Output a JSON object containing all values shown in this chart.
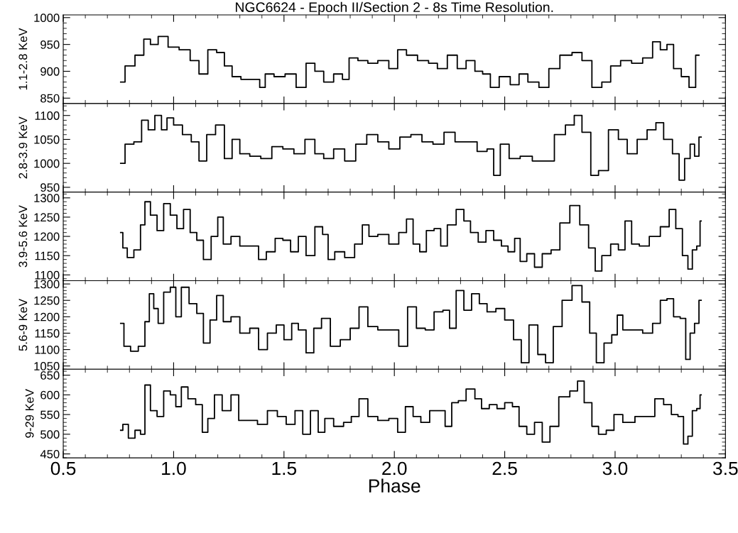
{
  "chart_data": [
    {
      "type": "step",
      "title": "NGC6624 - Epoch II/Section 2 - 8s Time Resolution.",
      "ylabel": "1.1-2.8 KeV",
      "xlim": [
        0.5,
        3.5
      ],
      "xticks": [
        0.5,
        1.0,
        1.5,
        2.0,
        2.5,
        3.0,
        3.5
      ],
      "ylim": [
        840,
        1005
      ],
      "yticks": [
        850,
        900,
        950,
        1000
      ],
      "tick_labels": "y",
      "grid": false,
      "legend": false,
      "series": [
        {
          "color": "#000000",
          "x": [
            0.76,
            0.8,
            0.85,
            0.88,
            0.91,
            0.95,
            1.0,
            1.05,
            1.1,
            1.13,
            1.18,
            1.21,
            1.25,
            1.28,
            1.33,
            1.38,
            1.4,
            1.43,
            1.48,
            1.53,
            1.58,
            1.62,
            1.66,
            1.7,
            1.75,
            1.78,
            1.81,
            1.86,
            1.9,
            1.95,
            2.0,
            2.03,
            2.08,
            2.13,
            2.18,
            2.21,
            2.27,
            2.3,
            2.35,
            2.38,
            2.42,
            2.45,
            2.5,
            2.55,
            2.58,
            2.63,
            2.68,
            2.72,
            2.78,
            2.83,
            2.87,
            2.92,
            2.96,
            3.0,
            3.05,
            3.1,
            3.15,
            3.19,
            3.22,
            3.25,
            3.28,
            3.32,
            3.35,
            3.38
          ],
          "values": [
            880,
            910,
            930,
            960,
            950,
            965,
            945,
            940,
            920,
            895,
            940,
            935,
            910,
            890,
            885,
            885,
            870,
            895,
            890,
            895,
            870,
            915,
            900,
            880,
            895,
            885,
            925,
            920,
            915,
            920,
            905,
            940,
            930,
            920,
            915,
            905,
            930,
            905,
            920,
            900,
            895,
            870,
            890,
            875,
            895,
            880,
            870,
            905,
            930,
            935,
            920,
            870,
            880,
            910,
            920,
            915,
            925,
            955,
            940,
            950,
            905,
            890,
            870,
            930
          ]
        }
      ]
    },
    {
      "type": "step",
      "ylabel": "2.8-3.9 KeV",
      "xlim": [
        0.5,
        3.5
      ],
      "xticks": [
        0.5,
        1.0,
        1.5,
        2.0,
        2.5,
        3.0,
        3.5
      ],
      "ylim": [
        940,
        1125
      ],
      "yticks": [
        950,
        1000,
        1050,
        1100
      ],
      "tick_labels": "y",
      "grid": false,
      "legend": false,
      "series": [
        {
          "color": "#000000",
          "x": [
            0.76,
            0.8,
            0.84,
            0.87,
            0.9,
            0.93,
            0.96,
            0.98,
            1.02,
            1.06,
            1.1,
            1.13,
            1.17,
            1.21,
            1.25,
            1.28,
            1.32,
            1.37,
            1.42,
            1.47,
            1.52,
            1.57,
            1.62,
            1.66,
            1.7,
            1.75,
            1.8,
            1.85,
            1.9,
            1.95,
            2.0,
            2.05,
            2.1,
            2.15,
            2.2,
            2.25,
            2.3,
            2.35,
            2.4,
            2.44,
            2.46,
            2.5,
            2.54,
            2.6,
            2.65,
            2.7,
            2.75,
            2.8,
            2.83,
            2.87,
            2.91,
            2.94,
            3.0,
            3.03,
            3.08,
            3.12,
            3.17,
            3.2,
            3.24,
            3.28,
            3.3,
            3.33,
            3.35,
            3.37,
            3.39
          ],
          "values": [
            1000,
            1040,
            1045,
            1090,
            1070,
            1100,
            1070,
            1095,
            1080,
            1060,
            1045,
            1005,
            1060,
            1080,
            1010,
            1050,
            1020,
            1015,
            1010,
            1035,
            1030,
            1020,
            1050,
            1020,
            1010,
            1030,
            1005,
            1040,
            1060,
            1045,
            1030,
            1055,
            1060,
            1045,
            1040,
            1065,
            1045,
            1045,
            1025,
            1030,
            975,
            1040,
            1010,
            1015,
            1005,
            1005,
            1060,
            1080,
            1100,
            1065,
            975,
            985,
            1070,
            1050,
            1020,
            1050,
            1070,
            1085,
            1050,
            1020,
            965,
            1010,
            1040,
            1015,
            1055
          ]
        }
      ]
    },
    {
      "type": "step",
      "ylabel": "3.9-5.6 KeV",
      "xlim": [
        0.5,
        3.5
      ],
      "xticks": [
        0.5,
        1.0,
        1.5,
        2.0,
        2.5,
        3.0,
        3.5
      ],
      "ylim": [
        1085,
        1315
      ],
      "yticks": [
        1100,
        1150,
        1200,
        1250,
        1300
      ],
      "tick_labels": "y",
      "grid": false,
      "legend": false,
      "series": [
        {
          "color": "#000000",
          "x": [
            0.76,
            0.78,
            0.8,
            0.84,
            0.86,
            0.88,
            0.91,
            0.94,
            0.97,
            1.0,
            1.03,
            1.06,
            1.09,
            1.12,
            1.15,
            1.19,
            1.21,
            1.24,
            1.28,
            1.32,
            1.37,
            1.4,
            1.44,
            1.48,
            1.51,
            1.55,
            1.58,
            1.62,
            1.66,
            1.69,
            1.71,
            1.75,
            1.8,
            1.84,
            1.87,
            1.9,
            1.95,
            2.0,
            2.04,
            2.07,
            2.1,
            2.13,
            2.16,
            2.2,
            2.22,
            2.26,
            2.3,
            2.33,
            2.36,
            2.4,
            2.43,
            2.47,
            2.5,
            2.53,
            2.56,
            2.58,
            2.62,
            2.65,
            2.69,
            2.73,
            2.77,
            2.82,
            2.86,
            2.9,
            2.92,
            2.96,
            3.0,
            3.03,
            3.06,
            3.09,
            3.13,
            3.18,
            3.23,
            3.26,
            3.29,
            3.32,
            3.34,
            3.36,
            3.38,
            3.39
          ],
          "values": [
            1210,
            1170,
            1145,
            1165,
            1230,
            1290,
            1255,
            1215,
            1285,
            1255,
            1220,
            1270,
            1210,
            1190,
            1140,
            1200,
            1250,
            1180,
            1200,
            1175,
            1175,
            1140,
            1160,
            1195,
            1190,
            1160,
            1200,
            1150,
            1225,
            1205,
            1140,
            1160,
            1145,
            1180,
            1230,
            1200,
            1205,
            1180,
            1210,
            1245,
            1180,
            1160,
            1215,
            1220,
            1175,
            1230,
            1270,
            1240,
            1210,
            1185,
            1215,
            1190,
            1175,
            1160,
            1195,
            1135,
            1155,
            1120,
            1155,
            1165,
            1235,
            1280,
            1230,
            1170,
            1110,
            1150,
            1180,
            1165,
            1240,
            1180,
            1175,
            1200,
            1225,
            1270,
            1220,
            1150,
            1115,
            1165,
            1175,
            1240
          ]
        }
      ]
    },
    {
      "type": "step",
      "ylabel": "5.6-9 KeV",
      "xlim": [
        0.5,
        3.5
      ],
      "xticks": [
        0.5,
        1.0,
        1.5,
        2.0,
        2.5,
        3.0,
        3.5
      ],
      "ylim": [
        1040,
        1310
      ],
      "yticks": [
        1050,
        1100,
        1150,
        1200,
        1250,
        1300
      ],
      "tick_labels": "y",
      "grid": false,
      "legend": false,
      "series": [
        {
          "color": "#000000",
          "x": [
            0.76,
            0.79,
            0.82,
            0.86,
            0.88,
            0.9,
            0.92,
            0.94,
            0.97,
            1.0,
            1.02,
            1.05,
            1.09,
            1.12,
            1.15,
            1.18,
            1.21,
            1.24,
            1.28,
            1.32,
            1.37,
            1.4,
            1.45,
            1.48,
            1.52,
            1.55,
            1.58,
            1.62,
            1.65,
            1.69,
            1.73,
            1.78,
            1.82,
            1.86,
            1.9,
            1.95,
            2.0,
            2.04,
            2.08,
            2.12,
            2.16,
            2.2,
            2.24,
            2.26,
            2.3,
            2.33,
            2.37,
            2.4,
            2.44,
            2.48,
            2.52,
            2.56,
            2.59,
            2.63,
            2.67,
            2.7,
            2.74,
            2.78,
            2.83,
            2.87,
            2.9,
            2.93,
            2.97,
            3.0,
            3.02,
            3.05,
            3.1,
            3.15,
            3.19,
            3.22,
            3.25,
            3.28,
            3.31,
            3.33,
            3.35,
            3.37,
            3.39
          ],
          "values": [
            1180,
            1110,
            1095,
            1110,
            1185,
            1270,
            1225,
            1180,
            1275,
            1290,
            1200,
            1290,
            1240,
            1210,
            1120,
            1190,
            1265,
            1185,
            1200,
            1150,
            1165,
            1100,
            1150,
            1175,
            1130,
            1180,
            1160,
            1090,
            1165,
            1195,
            1110,
            1130,
            1165,
            1230,
            1170,
            1160,
            1160,
            1110,
            1230,
            1165,
            1160,
            1215,
            1220,
            1165,
            1280,
            1220,
            1270,
            1240,
            1215,
            1225,
            1190,
            1130,
            1060,
            1175,
            1085,
            1060,
            1170,
            1250,
            1295,
            1245,
            1150,
            1060,
            1120,
            1145,
            1205,
            1160,
            1160,
            1150,
            1180,
            1250,
            1255,
            1200,
            1195,
            1070,
            1150,
            1180,
            1250
          ]
        }
      ]
    },
    {
      "type": "step",
      "ylabel": "9-29 KeV",
      "xlabel": "Phase",
      "xlim": [
        0.5,
        3.5
      ],
      "xticks": [
        0.5,
        {
          "value": 1,
          "label": "1.0"
        },
        1.5,
        {
          "value": 2,
          "label": "2.0"
        },
        2.5,
        {
          "value": 3,
          "label": "3.0"
        },
        3.5
      ],
      "ylim": [
        440,
        665
      ],
      "yticks": [
        450,
        500,
        550,
        600,
        650
      ],
      "grid": false,
      "legend": false,
      "series": [
        {
          "color": "#000000",
          "x": [
            0.76,
            0.78,
            0.81,
            0.84,
            0.86,
            0.88,
            0.91,
            0.94,
            0.97,
            1.0,
            1.02,
            1.05,
            1.08,
            1.12,
            1.14,
            1.17,
            1.2,
            1.24,
            1.28,
            1.31,
            1.36,
            1.4,
            1.45,
            1.49,
            1.53,
            1.57,
            1.6,
            1.64,
            1.67,
            1.7,
            1.75,
            1.79,
            1.82,
            1.86,
            1.9,
            1.95,
            2.0,
            2.03,
            2.07,
            2.1,
            2.14,
            2.18,
            2.22,
            2.24,
            2.28,
            2.3,
            2.35,
            2.38,
            2.41,
            2.45,
            2.48,
            2.52,
            2.55,
            2.58,
            2.62,
            2.65,
            2.69,
            2.72,
            2.77,
            2.82,
            2.84,
            2.88,
            2.91,
            2.94,
            2.98,
            3.01,
            3.06,
            3.12,
            3.16,
            3.2,
            3.24,
            3.27,
            3.3,
            3.32,
            3.34,
            3.36,
            3.38,
            3.39
          ],
          "values": [
            510,
            525,
            490,
            510,
            500,
            625,
            560,
            545,
            610,
            600,
            570,
            620,
            590,
            575,
            505,
            540,
            600,
            560,
            600,
            535,
            535,
            525,
            560,
            545,
            525,
            560,
            500,
            560,
            505,
            540,
            520,
            530,
            545,
            590,
            545,
            535,
            540,
            505,
            570,
            545,
            530,
            560,
            560,
            520,
            580,
            585,
            615,
            590,
            565,
            575,
            565,
            580,
            570,
            520,
            500,
            530,
            480,
            520,
            595,
            610,
            635,
            580,
            520,
            500,
            510,
            550,
            530,
            545,
            545,
            590,
            575,
            550,
            545,
            475,
            495,
            560,
            565,
            600
          ]
        }
      ]
    }
  ]
}
